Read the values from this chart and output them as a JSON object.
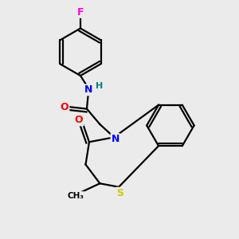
{
  "background_color": "#ebebeb",
  "atom_colors": {
    "F": "#ff00dd",
    "N": "#0000ff",
    "O": "#ff0000",
    "S": "#cccc00",
    "H": "#008080",
    "C": "#000000"
  },
  "bond_color": "#000000",
  "bond_width": 1.6,
  "figsize": [
    3.0,
    3.0
  ],
  "dpi": 100,
  "xlim": [
    0,
    10
  ],
  "ylim": [
    0,
    10
  ]
}
